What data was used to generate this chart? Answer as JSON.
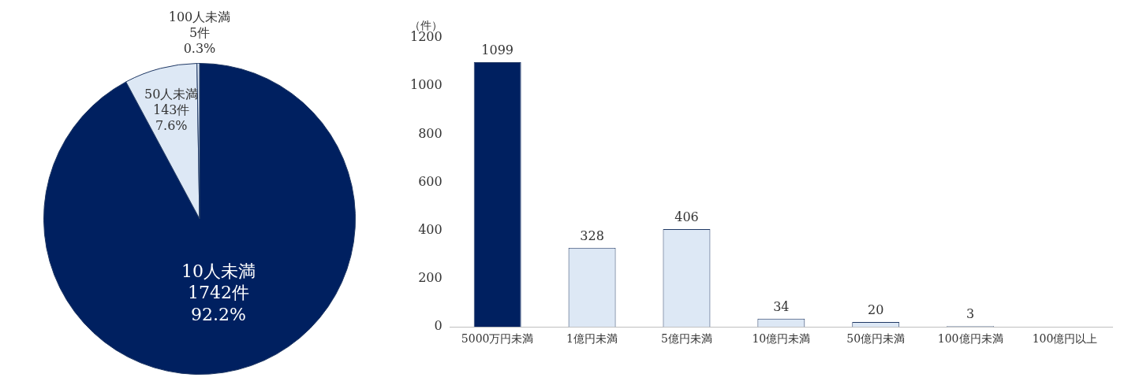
{
  "chart_data": [
    {
      "type": "pie",
      "categories": [
        "10人未満",
        "50人未満",
        "100人未満"
      ],
      "values": [
        1742,
        143,
        5
      ],
      "colors": [
        "#002060",
        "#dde8f5",
        "#dde8f5"
      ],
      "value_labels": [
        "1742件\n92.2%",
        "143件\n7.6%",
        "5件\n0.3%"
      ],
      "legend": false
    },
    {
      "type": "bar",
      "ylabel": "（件）",
      "categories": [
        "5000万円未満",
        "1億円未満",
        "5億円未満",
        "10億円未満",
        "50億円未満",
        "100億円未満",
        "100億円以上"
      ],
      "values": [
        1099,
        328,
        406,
        34,
        20,
        3,
        0
      ],
      "colors": [
        "#002060",
        "#dde8f5",
        "#dde8f5",
        "#dde8f5",
        "#dde8f5",
        "#dde8f5",
        "#dde8f5"
      ],
      "value_labels": [
        "1099",
        "328",
        "406",
        "34",
        "20",
        "3",
        null
      ],
      "ylim": [
        0,
        1200
      ],
      "yticks": [
        0,
        200,
        400,
        600,
        800,
        1000,
        1200
      ],
      "grid": false,
      "legend": false
    }
  ]
}
